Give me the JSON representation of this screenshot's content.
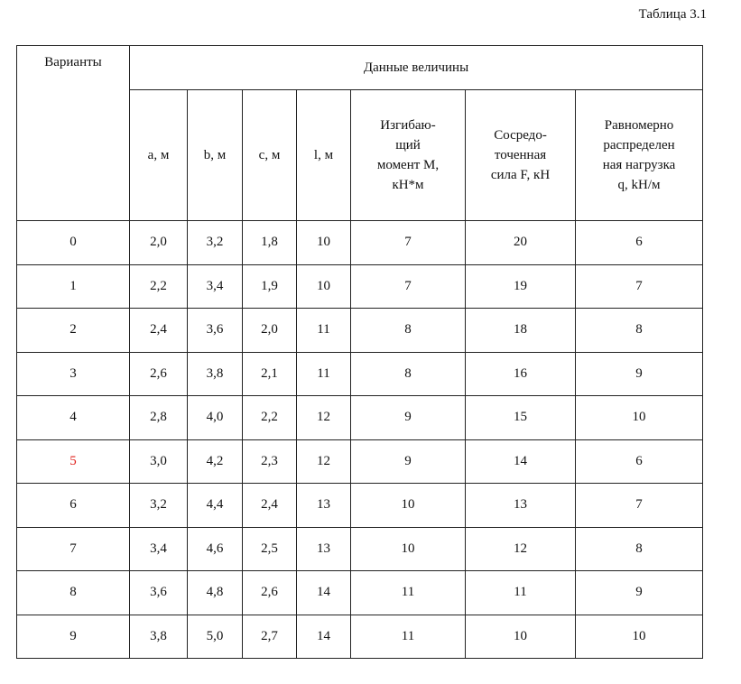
{
  "caption": "Таблица 3.1",
  "table": {
    "header": {
      "variants": "Варианты",
      "group": "Данные величины",
      "columns": [
        [
          "a, м"
        ],
        [
          "b, м"
        ],
        [
          "c, м"
        ],
        [
          "l, м"
        ],
        [
          "Изгибаю-",
          "щий",
          "момент М,",
          "кН*м"
        ],
        [
          "Сосредо-",
          "точенная",
          "сила F, кН"
        ],
        [
          "Равномерно",
          "распределен",
          "ная нагрузка",
          "q, kH/м"
        ]
      ]
    },
    "rows": [
      [
        "0",
        "2,0",
        "3,2",
        "1,8",
        "10",
        "7",
        "20",
        "6"
      ],
      [
        "1",
        "2,2",
        "3,4",
        "1,9",
        "10",
        "7",
        "19",
        "7"
      ],
      [
        "2",
        "2,4",
        "3,6",
        "2,0",
        "11",
        "8",
        "18",
        "8"
      ],
      [
        "3",
        "2,6",
        "3,8",
        "2,1",
        "11",
        "8",
        "16",
        "9"
      ],
      [
        "4",
        "2,8",
        "4,0",
        "2,2",
        "12",
        "9",
        "15",
        "10"
      ],
      [
        "5",
        "3,0",
        "4,2",
        "2,3",
        "12",
        "9",
        "14",
        "6"
      ],
      [
        "6",
        "3,2",
        "4,4",
        "2,4",
        "13",
        "10",
        "13",
        "7"
      ],
      [
        "7",
        "3,4",
        "4,6",
        "2,5",
        "13",
        "10",
        "12",
        "8"
      ],
      [
        "8",
        "3,6",
        "4,8",
        "2,6",
        "14",
        "11",
        "11",
        "9"
      ],
      [
        "9",
        "3,8",
        "5,0",
        "2,7",
        "14",
        "11",
        "10",
        "10"
      ]
    ]
  }
}
